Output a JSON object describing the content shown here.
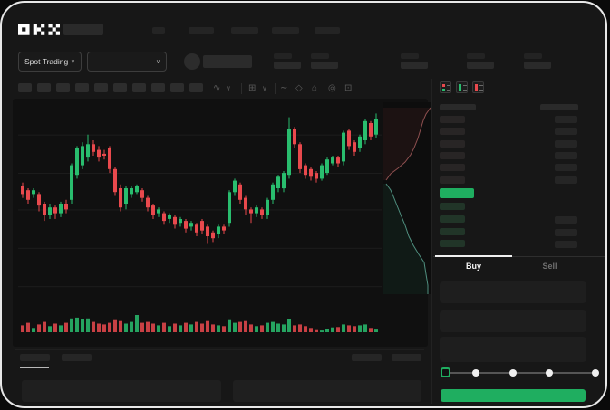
{
  "brand": {
    "logo_text": "OKX"
  },
  "header": {
    "nav_items_placeholder_count": 5,
    "market_selector": {
      "label": "Spot Trading",
      "chevron": "∨"
    },
    "pair_dropdown": {
      "chevron": "∨"
    },
    "ticker_placeholder": true,
    "stat_pairs_placeholder_count": 5
  },
  "toolbar": {
    "timeframe_placeholder_count": 10,
    "icons": [
      {
        "name": "candle-style-icon",
        "glyph": "∿"
      },
      {
        "name": "chevron-down-icon",
        "glyph": "∨"
      },
      {
        "name": "indicators-icon",
        "glyph": "⊞"
      },
      {
        "name": "chevron-down-icon",
        "glyph": "∨"
      },
      {
        "name": "line-tool-icon",
        "glyph": "∼"
      },
      {
        "name": "shapes-icon",
        "glyph": "◇"
      },
      {
        "name": "camera-icon",
        "glyph": "⌂"
      },
      {
        "name": "settings-icon",
        "glyph": "◎"
      },
      {
        "name": "fullscreen-icon",
        "glyph": "⊡"
      }
    ]
  },
  "chart_data": [
    {
      "type": "candlestick",
      "title": "",
      "xlabel": "",
      "ylabel": "",
      "x": "bar index 0-65, evenly spaced",
      "price_scale_note": "normalized 0-100, no axis labels visible in skeleton UI",
      "grid_levels": [
        86,
        66,
        47,
        27,
        7
      ],
      "candles": [
        [
          59,
          61,
          53,
          55
        ],
        [
          57,
          58,
          50,
          52
        ],
        [
          55,
          58,
          53,
          57
        ],
        [
          55,
          56,
          46,
          49
        ],
        [
          50,
          51,
          41,
          44
        ],
        [
          44,
          50,
          42,
          48
        ],
        [
          48,
          49,
          42,
          45
        ],
        [
          45,
          51,
          43,
          50
        ],
        [
          50,
          52,
          45,
          47
        ],
        [
          52,
          71,
          50,
          70
        ],
        [
          65,
          80,
          63,
          79
        ],
        [
          70,
          82,
          68,
          80
        ],
        [
          74,
          86,
          72,
          81
        ],
        [
          81,
          83,
          75,
          77
        ],
        [
          78,
          80,
          72,
          74
        ],
        [
          76,
          78,
          73,
          75
        ],
        [
          79,
          80,
          66,
          68
        ],
        [
          68,
          69,
          54,
          56
        ],
        [
          58,
          60,
          46,
          48
        ],
        [
          50,
          59,
          47,
          58
        ],
        [
          55,
          59,
          53,
          58
        ],
        [
          56,
          60,
          55,
          59
        ],
        [
          57,
          58,
          51,
          53
        ],
        [
          53,
          54,
          46,
          48
        ],
        [
          49,
          50,
          42,
          44
        ],
        [
          45,
          48,
          43,
          47
        ],
        [
          45,
          46,
          39,
          41
        ],
        [
          42,
          45,
          40,
          44
        ],
        [
          43,
          44,
          37,
          39
        ],
        [
          40,
          43,
          38,
          42
        ],
        [
          41,
          42,
          35,
          37
        ],
        [
          38,
          41,
          36,
          40
        ],
        [
          39,
          40,
          33,
          35
        ],
        [
          41,
          42,
          34,
          36
        ],
        [
          38,
          39,
          29,
          33
        ],
        [
          35,
          36,
          30,
          32
        ],
        [
          34,
          39,
          32,
          38
        ],
        [
          38,
          39,
          34,
          36
        ],
        [
          40,
          57,
          38,
          56
        ],
        [
          56,
          63,
          54,
          62
        ],
        [
          60,
          61,
          50,
          52
        ],
        [
          53,
          54,
          44,
          47
        ],
        [
          47,
          48,
          40,
          45
        ],
        [
          45,
          49,
          43,
          48
        ],
        [
          47,
          48,
          42,
          44
        ],
        [
          44,
          53,
          42,
          52
        ],
        [
          52,
          61,
          50,
          60
        ],
        [
          58,
          65,
          56,
          64
        ],
        [
          58,
          67,
          56,
          66
        ],
        [
          65,
          95,
          63,
          89
        ],
        [
          89,
          90,
          79,
          81
        ],
        [
          81,
          82,
          66,
          68
        ],
        [
          70,
          71,
          63,
          65
        ],
        [
          68,
          69,
          62,
          64
        ],
        [
          66,
          67,
          61,
          63
        ],
        [
          63,
          71,
          62,
          70
        ],
        [
          66,
          74,
          65,
          73
        ],
        [
          71,
          75,
          70,
          74
        ],
        [
          74,
          75,
          69,
          71
        ],
        [
          72,
          88,
          70,
          87
        ],
        [
          88,
          89,
          78,
          80
        ],
        [
          82,
          83,
          75,
          77
        ],
        [
          79,
          86,
          77,
          85
        ],
        [
          83,
          94,
          81,
          93
        ],
        [
          92,
          93,
          83,
          85
        ],
        [
          86,
          97,
          84,
          94
        ]
      ],
      "volumes": [
        40,
        55,
        25,
        45,
        60,
        35,
        50,
        40,
        55,
        80,
        85,
        75,
        80,
        60,
        50,
        45,
        55,
        70,
        65,
        50,
        60,
        100,
        55,
        60,
        50,
        40,
        55,
        35,
        50,
        40,
        55,
        45,
        60,
        50,
        65,
        45,
        40,
        35,
        70,
        55,
        60,
        65,
        45,
        35,
        40,
        55,
        60,
        50,
        45,
        75,
        40,
        45,
        35,
        25,
        12,
        10,
        20,
        28,
        30,
        45,
        40,
        35,
        40,
        45,
        25,
        15
      ],
      "colors": {
        "up": "#29BD6E",
        "down": "#E9494D"
      },
      "legend": "none",
      "grid": "horizontal only"
    },
    {
      "type": "area",
      "subtype": "depth",
      "orientation": "vertical strip right of candles",
      "asks_line": [
        [
          52,
          6
        ],
        [
          47,
          13
        ],
        [
          44,
          20
        ],
        [
          41,
          30
        ],
        [
          38,
          40
        ],
        [
          34,
          50
        ],
        [
          30,
          58
        ],
        [
          24,
          66
        ],
        [
          16,
          73
        ],
        [
          8,
          79
        ],
        [
          3,
          86
        ]
      ],
      "bids_line": [
        [
          3,
          90
        ],
        [
          8,
          97
        ],
        [
          11,
          104
        ],
        [
          15,
          114
        ],
        [
          19,
          124
        ],
        [
          24,
          136
        ],
        [
          28,
          148
        ],
        [
          33,
          158
        ],
        [
          39,
          168
        ],
        [
          45,
          177
        ],
        [
          47,
          190
        ],
        [
          49,
          202
        ],
        [
          49,
          212
        ]
      ],
      "colors": {
        "asks_line": "#8F5050",
        "bids_line": "#4F8F7F",
        "asks_fill": "rgba(190,80,80,0.09)",
        "bids_fill": "rgba(60,190,140,0.08)"
      }
    }
  ],
  "order_book": {
    "view_icons": [
      "book-all-icon",
      "book-bids-icon",
      "book-asks-icon"
    ],
    "header_placeholder_count": 2,
    "ask_row_count": 6,
    "bid_row_count": 4,
    "bid_rows_with_size_count": 3,
    "last_price_block": {
      "color": "#1FAE60"
    }
  },
  "trade_panel": {
    "tabs": [
      {
        "label": "Buy",
        "active": true
      },
      {
        "label": "Sell",
        "active": false
      }
    ],
    "field_placeholder_count": 3,
    "slider": {
      "stop_count": 5,
      "active_stop_index": 0
    },
    "submit_button": {
      "color": "#1FAE60",
      "label": ""
    }
  },
  "bottom_panel": {
    "left_tab_placeholder_count": 2,
    "right_placeholder_count": 2,
    "row_placeholder_count": 2
  },
  "colors": {
    "page_bg": "#0A0A0A",
    "app_bg": "#171717",
    "chart_bg": "#101010",
    "skeleton": "#262626",
    "green": "#1FAE60",
    "red": "#E9494D",
    "text_primary": "#F2F2F2",
    "text_muted": "#6F6F6F",
    "frame_border": "#E8E8E8",
    "bid_tint": "#213528"
  }
}
